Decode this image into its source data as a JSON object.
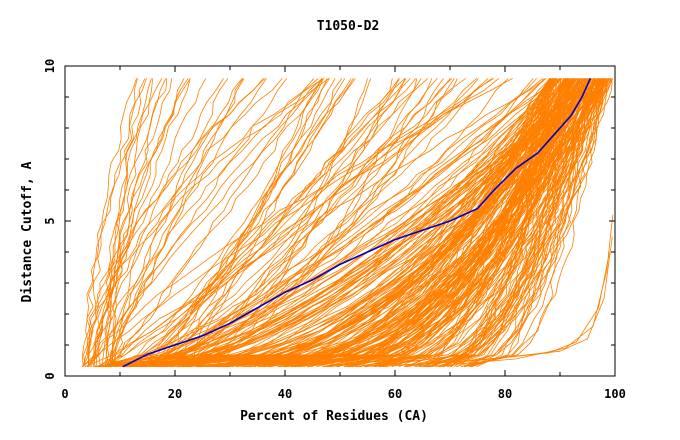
{
  "chart_data": {
    "type": "line",
    "title": "T1050-D2",
    "xlabel": "Percent of Residues (CA)",
    "ylabel": "Distance Cutoff, A",
    "xlim": [
      0,
      100
    ],
    "ylim": [
      0,
      10
    ],
    "x_ticks": [
      "0",
      "20",
      "40",
      "60",
      "80",
      "100"
    ],
    "y_ticks": [
      "0",
      "5",
      "10"
    ],
    "grid": false,
    "legend": "none",
    "colors": {
      "curves": "#ff8000",
      "highlight": "#0000c8",
      "frame": "#000000"
    },
    "highlight_series": {
      "x": [
        10.5,
        15,
        20,
        25,
        30,
        35,
        40,
        45,
        50,
        55,
        60,
        65,
        70,
        75,
        78,
        82,
        86,
        89,
        92,
        94,
        95.5
      ],
      "y": [
        0.3,
        0.7,
        1.0,
        1.3,
        1.7,
        2.2,
        2.7,
        3.1,
        3.6,
        4.0,
        4.4,
        4.7,
        5.0,
        5.4,
        6.0,
        6.7,
        7.2,
        7.8,
        8.4,
        9.0,
        9.6
      ]
    },
    "background_series_count": 300
  }
}
